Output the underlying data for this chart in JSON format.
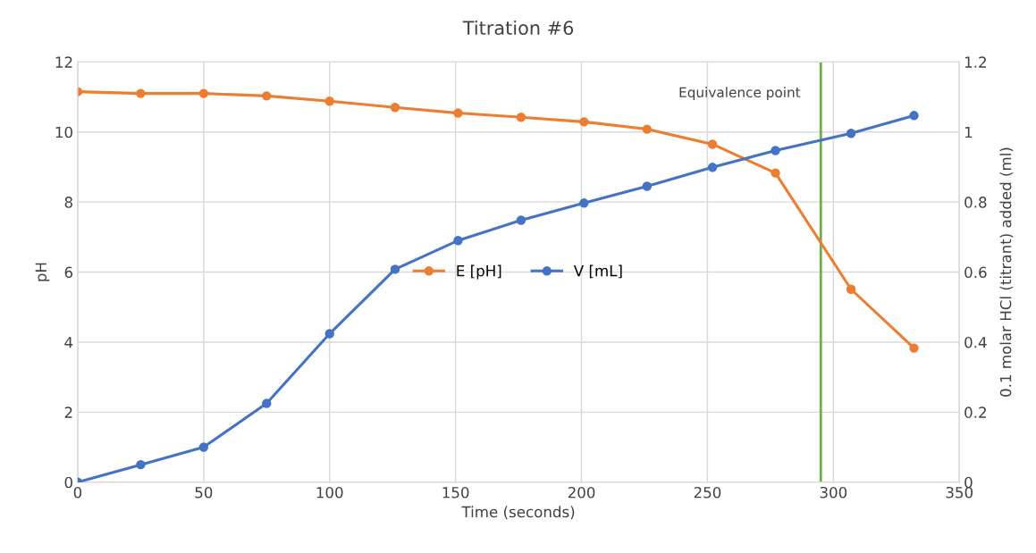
{
  "chart_data": {
    "type": "line",
    "title": "Titration #6",
    "xlabel": "Time (seconds)",
    "ylabel": "pH",
    "y2label": "0.1 molar HCl (titrant) added (ml)",
    "x": [
      0,
      25,
      50,
      75,
      100,
      126,
      151,
      176,
      201,
      226,
      252,
      277,
      307,
      332
    ],
    "series": [
      {
        "name": "E [pH]",
        "color": "#ed7d31",
        "values": [
          11.15,
          11.1,
          11.1,
          11.03,
          10.88,
          10.7,
          10.54,
          10.42,
          10.29,
          10.08,
          9.65,
          8.83,
          5.51,
          3.83
        ]
      },
      {
        "name": "V [mL]",
        "color": "#4472c4",
        "axis": "y2",
        "values": [
          0,
          0.05,
          0.1,
          0.225,
          0.424,
          0.608,
          0.69,
          0.748,
          0.797,
          0.845,
          0.899,
          0.947,
          0.996,
          1.047
        ]
      }
    ],
    "xlim": [
      0,
      350
    ],
    "xticks": [
      0,
      50,
      100,
      150,
      200,
      250,
      300,
      350
    ],
    "ylim": [
      0,
      12
    ],
    "yticks": [
      0,
      2,
      4,
      6,
      8,
      10,
      12
    ],
    "y2lim": [
      0,
      1.2
    ],
    "y2ticks": [
      0,
      0.2,
      0.4,
      0.6,
      0.8,
      1,
      1.2
    ],
    "ref_lines": [
      {
        "axis": "x",
        "value": 295,
        "label": "Equivalence point",
        "color": "#70ad47",
        "line_style": "solid"
      }
    ],
    "grid": true,
    "legend": "center",
    "marker": "circle",
    "line_style": "solid"
  }
}
